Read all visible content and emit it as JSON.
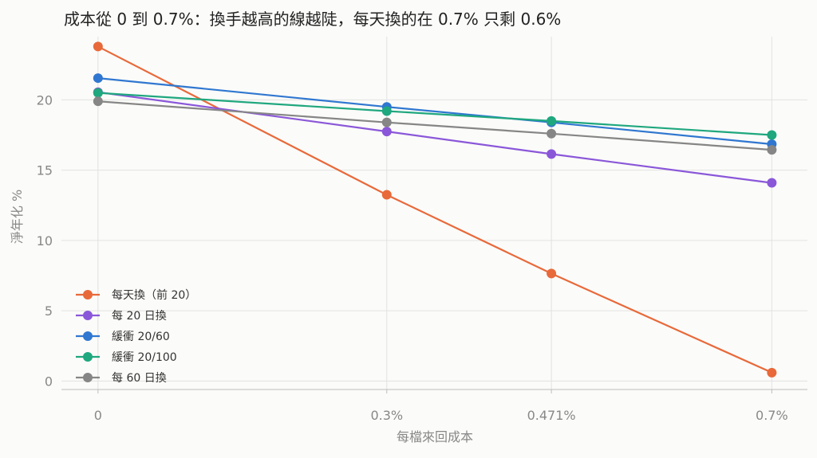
{
  "chart_data": {
    "type": "line",
    "title": "成本從 0 到 0.7%：換手越高的線越陡，每天換的在 0.7% 只剩 0.6%",
    "xlabel": "每檔來回成本",
    "ylabel": "淨年化 %",
    "categories": [
      "0",
      "0.3%",
      "0.471%",
      "0.7%"
    ],
    "x": [
      0,
      0.3,
      0.471,
      0.7
    ],
    "xlim": [
      -0.038,
      0.737
    ],
    "ylim": [
      -0.6,
      24.5
    ],
    "yticks": [
      0,
      5,
      10,
      15,
      20
    ],
    "grid": true,
    "legend_position": "lower-left",
    "series": [
      {
        "name": "每天換（前 20）",
        "color": "#e8693a",
        "values": [
          23.8,
          13.25,
          7.65,
          0.6
        ]
      },
      {
        "name": "每 20 日換",
        "color": "#8a57d9",
        "values": [
          20.55,
          17.75,
          16.15,
          14.1
        ]
      },
      {
        "name": "緩衝 20/60",
        "color": "#2f77d0",
        "values": [
          21.55,
          19.5,
          18.4,
          16.85
        ]
      },
      {
        "name": "緩衝 20/100",
        "color": "#1fa77e",
        "values": [
          20.5,
          19.2,
          18.5,
          17.5
        ]
      },
      {
        "name": "每 60 日換",
        "color": "#868686",
        "values": [
          19.9,
          18.4,
          17.6,
          16.45
        ]
      }
    ]
  }
}
